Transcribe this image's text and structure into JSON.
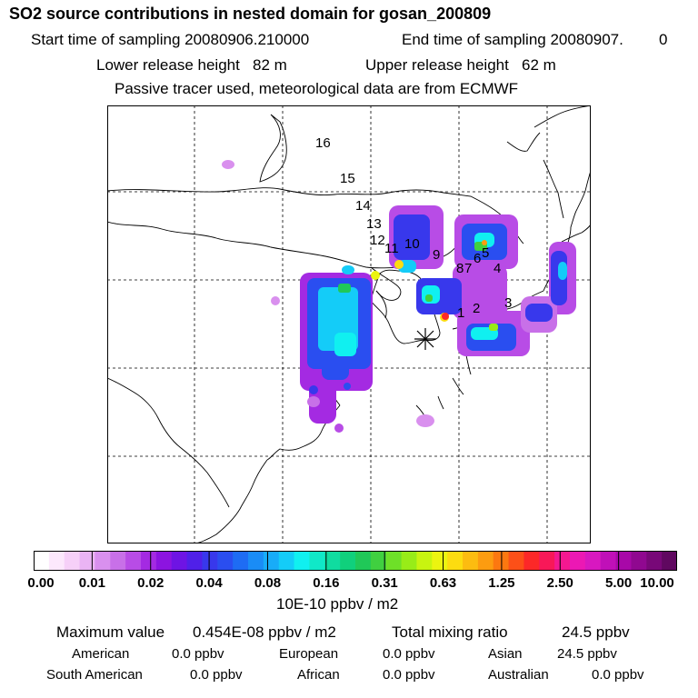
{
  "header": {
    "title": "SO2 source contributions in nested domain for gosan_200809",
    "start_label": "Start time of sampling 20080906.210000",
    "end_label": "End time of sampling 20080907.",
    "end_hour": "0",
    "lower_release": "Lower release height   82 m",
    "upper_release": "Upper release height   62 m",
    "tracer_note": "Passive tracer used, meteorological data are from ECMWF"
  },
  "map": {
    "receptor_marker": "receptor-star",
    "region_labels": [
      "16",
      "15",
      "14",
      "13",
      "12",
      "11",
      "10",
      "9",
      "8",
      "7",
      "6",
      "5",
      "4",
      "3",
      "2",
      "1"
    ]
  },
  "colorbar": {
    "tick_labels": [
      "0.00",
      "0.01",
      "0.02",
      "0.04",
      "0.08",
      "0.16",
      "0.31",
      "0.63",
      "1.25",
      "2.50",
      "5.00",
      "10.00"
    ],
    "unit": "10E-10 ppbv / m2",
    "colors": [
      "#ffffff",
      "#fce8fc",
      "#f6d0f8",
      "#eab4f4",
      "#d990ee",
      "#c870e8",
      "#b84ce6",
      "#a42ae2",
      "#8c14e0",
      "#6e14e4",
      "#5020e8",
      "#3838ec",
      "#2a4ef0",
      "#1e6cf4",
      "#1a8cf6",
      "#18acf8",
      "#14ccf8",
      "#10f0f0",
      "#10e8c8",
      "#10dca0",
      "#10d07c",
      "#20c858",
      "#40d040",
      "#6ee028",
      "#98ec18",
      "#c8f410",
      "#ecf410",
      "#fcdc10",
      "#fcbc10",
      "#fc9c10",
      "#fc7810",
      "#fc5018",
      "#fc2828",
      "#f81858",
      "#f41890",
      "#ec18b4",
      "#d818c0",
      "#c010b8",
      "#a808a8",
      "#900890",
      "#780878",
      "#600860"
    ]
  },
  "summary": {
    "max_label": "Maximum value",
    "max_value": "0.454E-08 ppbv / m2",
    "total_label": "Total mixing ratio",
    "total_value": "24.5 ppbv",
    "regions": [
      {
        "name": "American",
        "value": "0.0 ppbv"
      },
      {
        "name": "European",
        "value": "0.0 ppbv"
      },
      {
        "name": "Asian",
        "value": "24.5 ppbv"
      },
      {
        "name": "South American",
        "value": "0.0 ppbv"
      },
      {
        "name": "African",
        "value": "0.0 ppbv"
      },
      {
        "name": "Australian",
        "value": "0.0 ppbv"
      }
    ]
  }
}
